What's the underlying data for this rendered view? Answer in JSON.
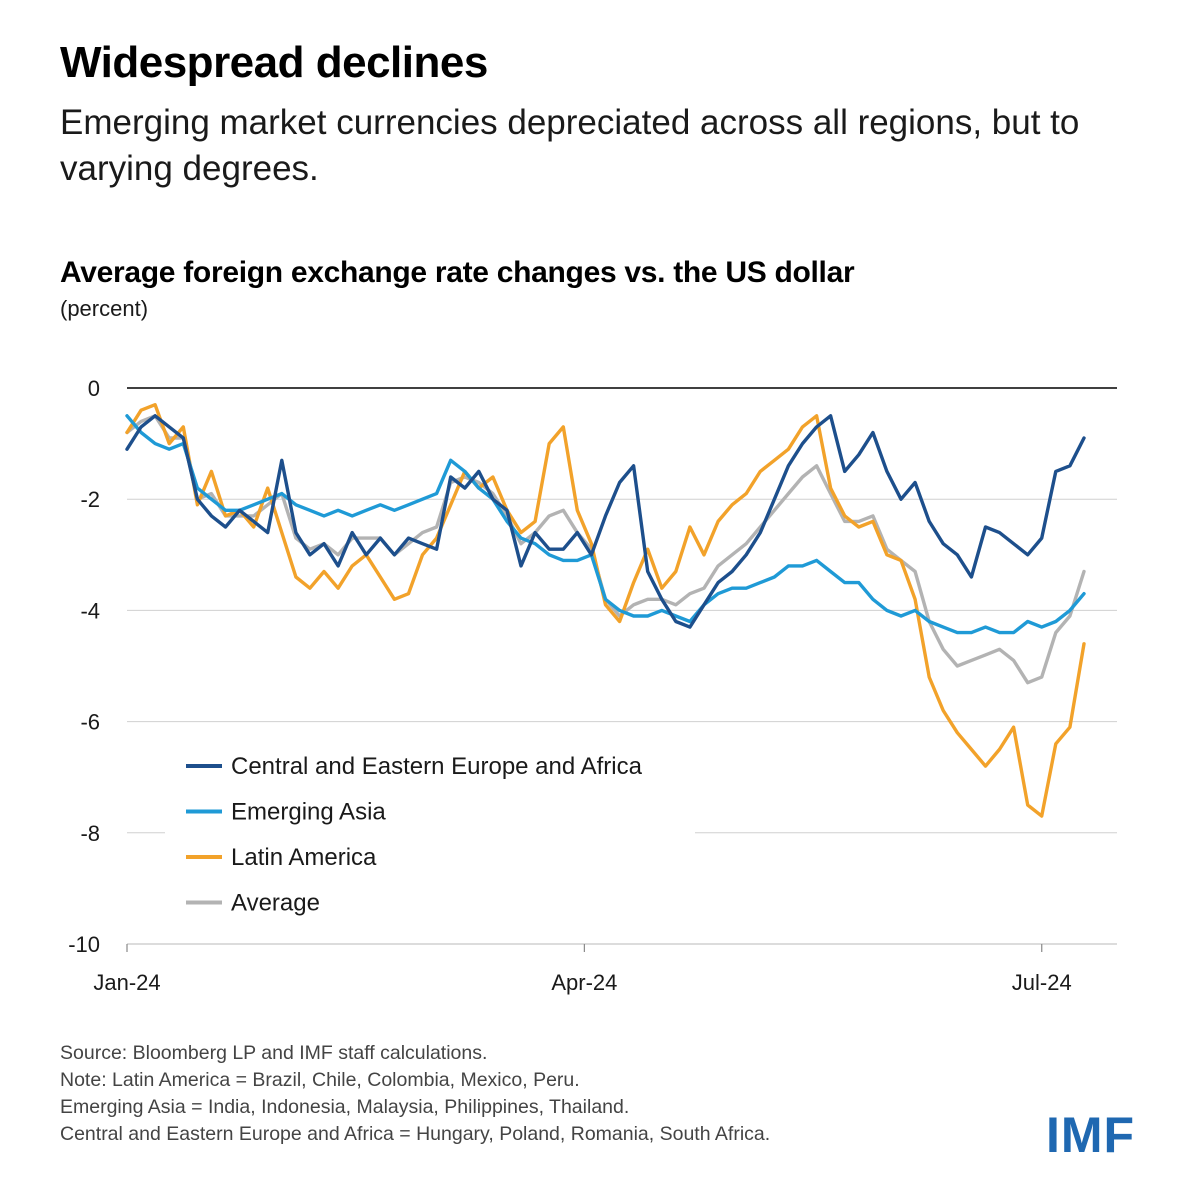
{
  "header": {
    "title": "Widespread declines",
    "subtitle": "Emerging market currencies depreciated across all regions, but to varying degrees."
  },
  "chart_data": {
    "type": "line",
    "title": "Average foreign exchange rate changes vs. the US dollar",
    "unit": "(percent)",
    "xlabel": "",
    "ylabel": "",
    "ylim": [
      -10,
      0
    ],
    "yticks": [
      0,
      -2,
      -4,
      -6,
      -8,
      -10
    ],
    "ytick_labels": [
      "0",
      "-2",
      "-4",
      "-6",
      "-8",
      "-10"
    ],
    "xticks": [
      "Jan-24",
      "Apr-24",
      "Jul-24"
    ],
    "xtick_positions": [
      0,
      65,
      130
    ],
    "x_range": [
      0,
      137
    ],
    "grid": "horizontal",
    "legend_position": "bottom-left",
    "series": [
      {
        "name": "Central and Eastern Europe and Africa",
        "color": "#1d4f8c",
        "x": [
          0,
          2,
          4,
          6,
          8,
          10,
          12,
          14,
          16,
          18,
          20,
          22,
          24,
          26,
          28,
          30,
          32,
          34,
          36,
          38,
          40,
          42,
          44,
          46,
          48,
          50,
          52,
          54,
          56,
          58,
          60,
          62,
          64,
          66,
          68,
          70,
          72,
          74,
          76,
          78,
          80,
          82,
          84,
          86,
          88,
          90,
          92,
          94,
          96,
          98,
          100,
          102,
          104,
          106,
          108,
          110,
          112,
          114,
          116,
          118,
          120,
          122,
          124,
          126,
          128,
          130,
          132,
          134,
          136
        ],
        "values": [
          -1.1,
          -0.7,
          -0.5,
          -0.7,
          -0.9,
          -2.0,
          -2.3,
          -2.5,
          -2.2,
          -2.4,
          -2.6,
          -1.3,
          -2.6,
          -3.0,
          -2.8,
          -3.2,
          -2.6,
          -3.0,
          -2.7,
          -3.0,
          -2.7,
          -2.8,
          -2.9,
          -1.6,
          -1.8,
          -1.5,
          -2.0,
          -2.2,
          -3.2,
          -2.6,
          -2.9,
          -2.9,
          -2.6,
          -3.0,
          -2.3,
          -1.7,
          -1.4,
          -3.3,
          -3.8,
          -4.2,
          -4.3,
          -3.9,
          -3.5,
          -3.3,
          -3.0,
          -2.6,
          -2.0,
          -1.4,
          -1.0,
          -0.7,
          -0.5,
          -1.5,
          -1.2,
          -0.8,
          -1.5,
          -2.0,
          -1.7,
          -2.4,
          -2.8,
          -3.0,
          -3.4,
          -2.5,
          -2.6,
          -2.8,
          -3.0,
          -2.7,
          -1.5,
          -1.4,
          -0.9
        ]
      },
      {
        "name": "Emerging Asia",
        "color": "#1f9ad6",
        "x": [
          0,
          2,
          4,
          6,
          8,
          10,
          12,
          14,
          16,
          18,
          20,
          22,
          24,
          26,
          28,
          30,
          32,
          34,
          36,
          38,
          40,
          42,
          44,
          46,
          48,
          50,
          52,
          54,
          56,
          58,
          60,
          62,
          64,
          66,
          68,
          70,
          72,
          74,
          76,
          78,
          80,
          82,
          84,
          86,
          88,
          90,
          92,
          94,
          96,
          98,
          100,
          102,
          104,
          106,
          108,
          110,
          112,
          114,
          116,
          118,
          120,
          122,
          124,
          126,
          128,
          130,
          132,
          134,
          136
        ],
        "values": [
          -0.5,
          -0.8,
          -1.0,
          -1.1,
          -1.0,
          -1.8,
          -2.0,
          -2.2,
          -2.2,
          -2.1,
          -2.0,
          -1.9,
          -2.1,
          -2.2,
          -2.3,
          -2.2,
          -2.3,
          -2.2,
          -2.1,
          -2.2,
          -2.1,
          -2.0,
          -1.9,
          -1.3,
          -1.5,
          -1.8,
          -2.0,
          -2.4,
          -2.7,
          -2.8,
          -3.0,
          -3.1,
          -3.1,
          -3.0,
          -3.8,
          -4.0,
          -4.1,
          -4.1,
          -4.0,
          -4.1,
          -4.2,
          -3.9,
          -3.7,
          -3.6,
          -3.6,
          -3.5,
          -3.4,
          -3.2,
          -3.2,
          -3.1,
          -3.3,
          -3.5,
          -3.5,
          -3.8,
          -4.0,
          -4.1,
          -4.0,
          -4.2,
          -4.3,
          -4.4,
          -4.4,
          -4.3,
          -4.4,
          -4.4,
          -4.2,
          -4.3,
          -4.2,
          -4.0,
          -3.7
        ]
      },
      {
        "name": "Latin America",
        "color": "#f2a22a",
        "x": [
          0,
          2,
          4,
          6,
          8,
          10,
          12,
          14,
          16,
          18,
          20,
          22,
          24,
          26,
          28,
          30,
          32,
          34,
          36,
          38,
          40,
          42,
          44,
          46,
          48,
          50,
          52,
          54,
          56,
          58,
          60,
          62,
          64,
          66,
          68,
          70,
          72,
          74,
          76,
          78,
          80,
          82,
          84,
          86,
          88,
          90,
          92,
          94,
          96,
          98,
          100,
          102,
          104,
          106,
          108,
          110,
          112,
          114,
          116,
          118,
          120,
          122,
          124,
          126,
          128,
          130,
          132,
          134,
          136
        ],
        "values": [
          -0.8,
          -0.4,
          -0.3,
          -1.0,
          -0.7,
          -2.1,
          -1.5,
          -2.3,
          -2.2,
          -2.5,
          -1.8,
          -2.6,
          -3.4,
          -3.6,
          -3.3,
          -3.6,
          -3.2,
          -3.0,
          -3.4,
          -3.8,
          -3.7,
          -3.0,
          -2.7,
          -2.1,
          -1.5,
          -1.8,
          -1.6,
          -2.2,
          -2.6,
          -2.4,
          -1.0,
          -0.7,
          -2.2,
          -2.8,
          -3.9,
          -4.2,
          -3.5,
          -2.9,
          -3.6,
          -3.3,
          -2.5,
          -3.0,
          -2.4,
          -2.1,
          -1.9,
          -1.5,
          -1.3,
          -1.1,
          -0.7,
          -0.5,
          -1.8,
          -2.3,
          -2.5,
          -2.4,
          -3.0,
          -3.1,
          -3.8,
          -5.2,
          -5.8,
          -6.2,
          -6.5,
          -6.8,
          -6.5,
          -6.1,
          -7.5,
          -7.7,
          -6.4,
          -6.1,
          -4.6
        ]
      },
      {
        "name": "Average",
        "color": "#b3b3b3",
        "x": [
          0,
          2,
          4,
          6,
          8,
          10,
          12,
          14,
          16,
          18,
          20,
          22,
          24,
          26,
          28,
          30,
          32,
          34,
          36,
          38,
          40,
          42,
          44,
          46,
          48,
          50,
          52,
          54,
          56,
          58,
          60,
          62,
          64,
          66,
          68,
          70,
          72,
          74,
          76,
          78,
          80,
          82,
          84,
          86,
          88,
          90,
          92,
          94,
          96,
          98,
          100,
          102,
          104,
          106,
          108,
          110,
          112,
          114,
          116,
          118,
          120,
          122,
          124,
          126,
          128,
          130,
          132,
          134,
          136
        ],
        "values": [
          -0.8,
          -0.6,
          -0.5,
          -0.9,
          -0.9,
          -2.0,
          -1.9,
          -2.3,
          -2.3,
          -2.3,
          -2.1,
          -1.9,
          -2.7,
          -2.9,
          -2.8,
          -3.0,
          -2.7,
          -2.7,
          -2.7,
          -3.0,
          -2.8,
          -2.6,
          -2.5,
          -1.7,
          -1.6,
          -1.7,
          -1.9,
          -2.3,
          -2.8,
          -2.6,
          -2.3,
          -2.2,
          -2.6,
          -2.9,
          -3.8,
          -4.1,
          -3.9,
          -3.8,
          -3.8,
          -3.9,
          -3.7,
          -3.6,
          -3.2,
          -3.0,
          -2.8,
          -2.5,
          -2.2,
          -1.9,
          -1.6,
          -1.4,
          -1.9,
          -2.4,
          -2.4,
          -2.3,
          -2.9,
          -3.1,
          -3.3,
          -4.2,
          -4.7,
          -5.0,
          -4.9,
          -4.8,
          -4.7,
          -4.9,
          -5.3,
          -5.2,
          -4.4,
          -4.1,
          -3.3
        ]
      }
    ]
  },
  "footer": {
    "source": "Source: Bloomberg LP and IMF staff calculations.",
    "note1": "Note: Latin America = Brazil, Chile, Colombia, Mexico, Peru.",
    "note2": "Emerging Asia = India, Indonesia, Malaysia, Philippines, Thailand.",
    "note3": "Central and Eastern Europe and Africa = Hungary, Poland, Romania, South Africa.",
    "logo": "IMF",
    "logo_color": "#1f68b1"
  }
}
